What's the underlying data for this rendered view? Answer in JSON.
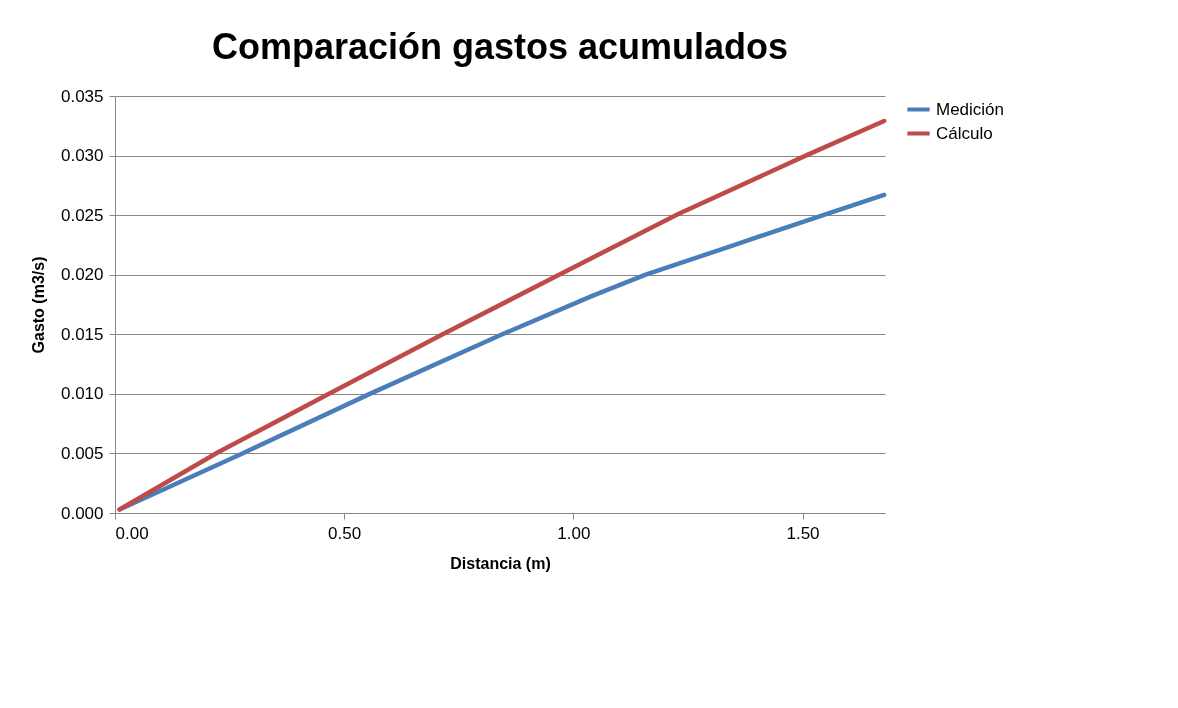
{
  "chart_data": {
    "type": "line",
    "title": "Comparación  gastos acumulados",
    "xlabel": "Distancia (m)",
    "ylabel": "Gasto (m3/s)",
    "series": [
      {
        "name": "Medición",
        "color": "#4a7ebb",
        "x": [
          0.01,
          0.278,
          0.556,
          0.845,
          1.04,
          1.158,
          1.336,
          1.537,
          1.678
        ],
        "values": [
          0.0003,
          0.005,
          0.01,
          0.015,
          0.0182,
          0.02,
          0.0223,
          0.0249,
          0.0267
        ]
      },
      {
        "name": "Cálculo",
        "color": "#be4b48",
        "x": [
          0.01,
          0.225,
          0.467,
          0.715,
          0.969,
          1.229,
          1.513,
          1.678
        ],
        "values": [
          0.0003,
          0.0051,
          0.01,
          0.015,
          0.02,
          0.0251,
          0.0301,
          0.0329
        ]
      }
    ],
    "xlim": [
      0,
      1.68
    ],
    "xticks": [
      {
        "value": 0,
        "label": "0.00"
      },
      {
        "value": 0.5,
        "label": "0.50"
      },
      {
        "value": 1,
        "label": "1.00"
      },
      {
        "value": 1.5,
        "label": "1.50"
      }
    ],
    "ylim": [
      0,
      0.035
    ],
    "yticks": [
      {
        "value": 0,
        "label": "0.000"
      },
      {
        "value": 0.005,
        "label": "0.005"
      },
      {
        "value": 0.01,
        "label": "0.010"
      },
      {
        "value": 0.015,
        "label": "0.015"
      },
      {
        "value": 0.02,
        "label": "0.020"
      },
      {
        "value": 0.025,
        "label": "0.025"
      },
      {
        "value": 0.03,
        "label": "0.030"
      },
      {
        "value": 0.035,
        "label": "0.035"
      }
    ],
    "grid": "y",
    "legend": "right",
    "marker": "none",
    "line_style": "solid"
  }
}
